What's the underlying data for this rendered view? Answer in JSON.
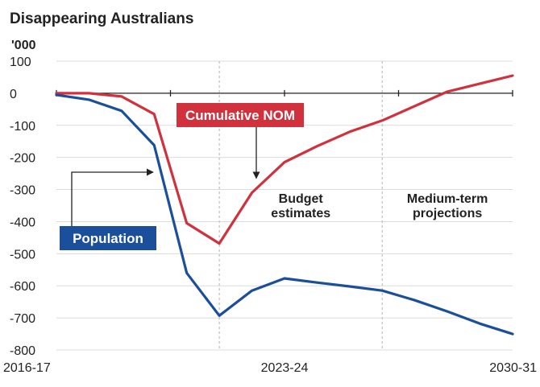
{
  "chart_data": {
    "type": "line",
    "title": "Disappearing Australians",
    "ylabel": "'000",
    "ylim": [
      -800,
      100
    ],
    "yticks": [
      100,
      0,
      -100,
      -200,
      -300,
      -400,
      -500,
      -600,
      -700,
      -800
    ],
    "xlim": [
      0,
      14
    ],
    "xticks": [
      {
        "x": 0,
        "label": "2016-17"
      },
      {
        "x": 7,
        "label": "2023-24"
      },
      {
        "x": 14,
        "label": "2030-31"
      }
    ],
    "grid": "horizontal",
    "region_dividers": [
      5,
      10
    ],
    "regions": [
      {
        "start": 5,
        "end": 10,
        "label_lines": [
          "Budget",
          "estimates"
        ]
      },
      {
        "start": 10,
        "end": 14,
        "label_lines": [
          "Medium-term",
          "projections"
        ]
      }
    ],
    "series": [
      {
        "name": "Cumulative NOM",
        "color": "#d1303d",
        "x": [
          0,
          1,
          2,
          3,
          4,
          5,
          6,
          7,
          8,
          9,
          10,
          11,
          12,
          13,
          14
        ],
        "values": [
          0,
          0,
          -10,
          -65,
          -405,
          -468,
          -310,
          -215,
          -165,
          -120,
          -85,
          -40,
          5,
          30,
          55
        ]
      },
      {
        "name": "Population",
        "color": "#1b4f9c",
        "x": [
          0,
          1,
          2,
          3,
          4,
          5,
          6,
          7,
          8,
          9,
          10,
          11,
          12,
          13,
          14
        ],
        "values": [
          -5,
          -20,
          -55,
          -162,
          -560,
          -693,
          -615,
          -577,
          -590,
          -602,
          -615,
          -645,
          -680,
          -718,
          -750
        ]
      }
    ],
    "callouts": [
      {
        "series": "Cumulative NOM",
        "color": "#d1303d"
      },
      {
        "series": "Population",
        "color": "#1b4f9c"
      }
    ]
  }
}
